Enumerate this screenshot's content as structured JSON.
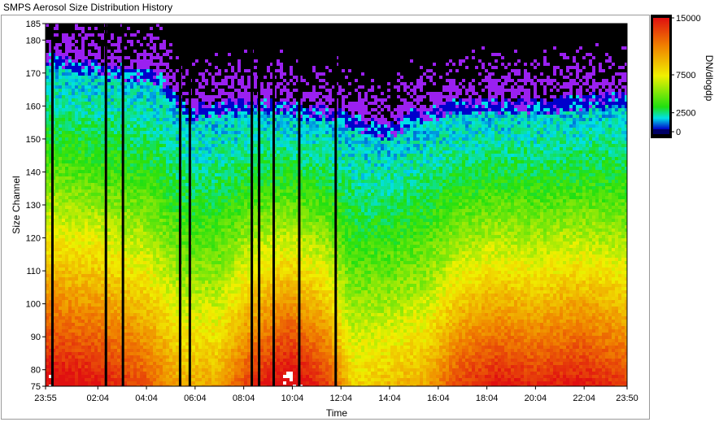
{
  "window": {
    "title": "SMPS Aerosol Size Distribution History"
  },
  "chart_data": {
    "type": "heatmap",
    "title": "",
    "xlabel": "Time",
    "ylabel": "Size Channel",
    "x_ticks": [
      "23:55",
      "02:04",
      "04:04",
      "06:04",
      "08:04",
      "10:04",
      "12:04",
      "14:04",
      "16:04",
      "18:04",
      "20:04",
      "22:04",
      "23:50"
    ],
    "xlim_hours": [
      -0.0833,
      23.8333
    ],
    "y_ticks": [
      75,
      80,
      90,
      100,
      110,
      120,
      130,
      140,
      150,
      160,
      170,
      180,
      185
    ],
    "ylim": [
      75,
      185
    ],
    "colorbar": {
      "label": "DN/dlogdp",
      "ticks": [
        0,
        2500,
        7500,
        15000
      ],
      "tick_labels": [
        "0",
        "2500",
        "7500",
        "15000"
      ],
      "range": [
        0,
        15000
      ]
    },
    "grid": false,
    "colors": {
      "low": "#0000cc",
      "cyan": "#00e0e8",
      "green": "#20e010",
      "yellow": "#f0f000",
      "orange": "#f08000",
      "high": "#e01010",
      "sparse": "#9a20f0",
      "no_data": "#000000",
      "saturated": "#ffffff"
    },
    "notes_data": {
      "gap_times_hours": [
        0.2,
        2.4,
        3.1,
        5.45,
        5.85,
        8.4,
        8.7,
        9.3,
        10.35,
        11.85
      ]
    }
  }
}
